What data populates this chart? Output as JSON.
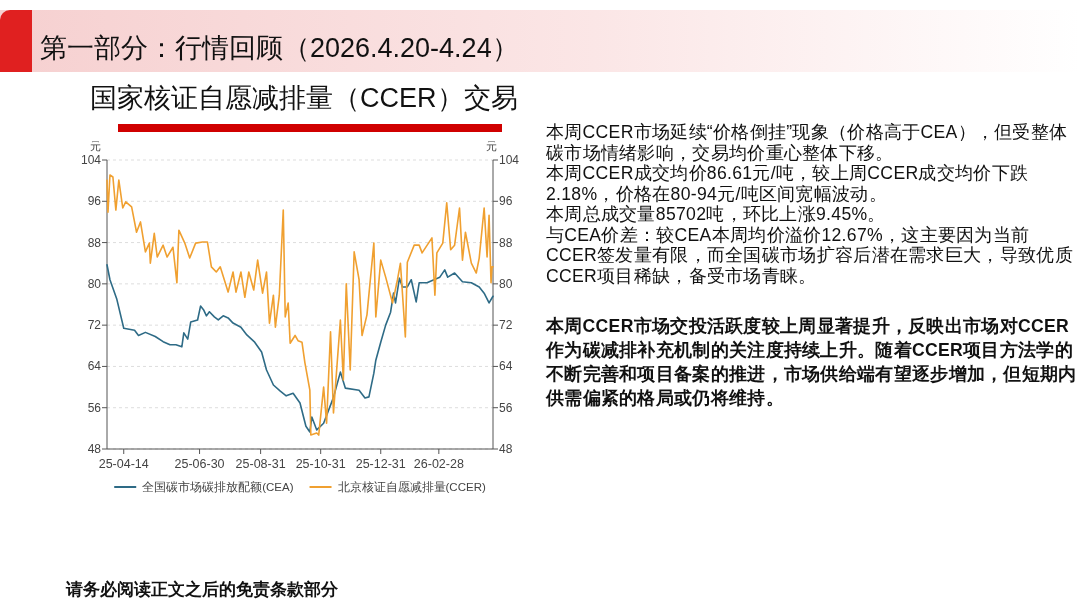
{
  "chart_data": {
    "type": "line",
    "title": "第一部分：行情回顾（2026.4.20-4.24）",
    "subtitle": "国家核证自愿减排量（CCER）交易",
    "ylabel": "元",
    "y2label": "元",
    "xlim": [
      "2025-03-28",
      "2026-04-24"
    ],
    "xticks": [
      {
        "value": "2025-04-14",
        "label": "25-04-14"
      },
      {
        "value": "2025-06-30",
        "label": "25-06-30"
      },
      {
        "value": "2025-08-31",
        "label": "25-08-31"
      },
      {
        "value": "2025-10-31",
        "label": "25-10-31"
      },
      {
        "value": "2025-12-31",
        "label": "25-12-31"
      },
      {
        "value": "2026-02-28",
        "label": "26-02-28"
      }
    ],
    "ylim": [
      48,
      104
    ],
    "yticks": [
      48,
      56,
      64,
      72,
      80,
      88,
      96,
      104
    ],
    "y2lim": [
      48,
      104
    ],
    "y2ticks": [
      48,
      56,
      64,
      72,
      80,
      88,
      96,
      104
    ],
    "grid": "y",
    "legend": "bottom",
    "series": [
      {
        "name": "全国碳市场碳排放配额(CEA)",
        "color": "#2e6b86",
        "x": [
          "2025-03-28",
          "2025-03-31",
          "2025-04-07",
          "2025-04-14",
          "2025-04-25",
          "2025-04-29",
          "2025-05-06",
          "2025-05-16",
          "2025-05-24",
          "2025-05-31",
          "2025-06-06",
          "2025-06-12",
          "2025-06-14",
          "2025-06-18",
          "2025-06-21",
          "2025-06-28",
          "2025-07-01",
          "2025-07-04",
          "2025-07-07",
          "2025-07-10",
          "2025-07-15",
          "2025-07-19",
          "2025-07-24",
          "2025-07-29",
          "2025-08-03",
          "2025-08-11",
          "2025-08-17",
          "2025-08-25",
          "2025-09-01",
          "2025-09-06",
          "2025-09-13",
          "2025-09-20",
          "2025-09-26",
          "2025-10-03",
          "2025-10-10",
          "2025-10-16",
          "2025-10-20",
          "2025-10-22",
          "2025-10-27",
          "2025-11-03",
          "2025-11-13",
          "2025-11-20",
          "2025-11-25",
          "2025-12-09",
          "2025-12-15",
          "2025-12-19",
          "2025-12-24",
          "2025-12-26",
          "2025-12-31",
          "2026-01-05",
          "2026-01-10",
          "2026-01-13",
          "2026-01-15",
          "2026-01-19",
          "2026-01-22",
          "2026-01-27",
          "2026-01-31",
          "2026-02-05",
          "2026-02-08",
          "2026-02-16",
          "2026-02-23",
          "2026-03-01",
          "2026-03-06",
          "2026-03-09",
          "2026-03-16",
          "2026-03-24",
          "2026-04-02",
          "2026-04-10",
          "2026-04-15",
          "2026-04-20",
          "2026-04-24"
        ],
        "values": [
          83.7,
          80.8,
          77,
          71.4,
          71,
          70,
          70.6,
          69.8,
          68.8,
          68.2,
          68.2,
          67.8,
          70.5,
          69.3,
          72.6,
          73,
          75.7,
          75,
          73.8,
          74.6,
          73.6,
          73,
          73.8,
          73.4,
          72.4,
          71.6,
          70.1,
          68.7,
          66.8,
          63.3,
          60.4,
          59.2,
          58.3,
          58.8,
          56.9,
          52.4,
          51.3,
          54.2,
          51.7,
          53,
          58,
          62.9,
          59.8,
          59.4,
          57.9,
          58.1,
          62.7,
          65.2,
          68.7,
          72,
          74.5,
          78.2,
          76.3,
          81.1,
          79.4,
          79.4,
          80.8,
          76.5,
          80.2,
          80.2,
          80.8,
          81.3,
          82.7,
          81.3,
          82.1,
          80.4,
          80.2,
          79.4,
          78.2,
          76.3,
          77.6
        ]
      },
      {
        "name": "北京核证自愿减排量(CCER)",
        "color": "#f0a030",
        "x": [
          "2025-03-28",
          "2025-03-29",
          "2025-03-31",
          "2025-04-03",
          "2025-04-06",
          "2025-04-09",
          "2025-04-13",
          "2025-04-16",
          "2025-04-22",
          "2025-04-27",
          "2025-05-01",
          "2025-05-06",
          "2025-05-10",
          "2025-05-11",
          "2025-05-15",
          "2025-05-18",
          "2025-05-24",
          "2025-05-28",
          "2025-06-03",
          "2025-06-07",
          "2025-06-09",
          "2025-06-15",
          "2025-06-20",
          "2025-06-26",
          "2025-07-03",
          "2025-07-08",
          "2025-07-12",
          "2025-07-17",
          "2025-07-21",
          "2025-07-29",
          "2025-08-03",
          "2025-08-06",
          "2025-08-11",
          "2025-08-15",
          "2025-08-19",
          "2025-08-24",
          "2025-08-28",
          "2025-09-02",
          "2025-09-06",
          "2025-09-09",
          "2025-09-13",
          "2025-09-15",
          "2025-09-19",
          "2025-09-23",
          "2025-09-25",
          "2025-09-28",
          "2025-09-30",
          "2025-10-05",
          "2025-10-08",
          "2025-10-12",
          "2025-10-15",
          "2025-10-20",
          "2025-10-21",
          "2025-10-27",
          "2025-10-29",
          "2025-11-03",
          "2025-11-06",
          "2025-11-10",
          "2025-11-13",
          "2025-11-20",
          "2025-11-23",
          "2025-11-26",
          "2025-11-30",
          "2025-12-04",
          "2025-12-09",
          "2025-12-12",
          "2025-12-17",
          "2025-12-24",
          "2025-12-26",
          "2025-12-31",
          "2026-01-05",
          "2026-01-12",
          "2026-01-17",
          "2026-01-20",
          "2026-01-25",
          "2026-01-27",
          "2026-02-03",
          "2026-02-08",
          "2026-02-11",
          "2026-02-21",
          "2026-02-24",
          "2026-02-26",
          "2026-03-04",
          "2026-03-08",
          "2026-03-12",
          "2026-03-16",
          "2026-03-21",
          "2026-03-24",
          "2026-03-27",
          "2026-04-02",
          "2026-04-07",
          "2026-04-10",
          "2026-04-15",
          "2026-04-18",
          "2026-04-20",
          "2026-04-22",
          "2026-04-23",
          "2026-04-24"
        ],
        "values": [
          100.1,
          93.9,
          101.1,
          100.7,
          94.3,
          100.1,
          94.7,
          95.9,
          94.9,
          90,
          92,
          86.2,
          87.9,
          84,
          89.8,
          85.2,
          87.5,
          85.2,
          87.1,
          80.2,
          90.4,
          87.9,
          85,
          87.9,
          88.1,
          88.1,
          83.3,
          82.3,
          83.3,
          78.4,
          82.3,
          78.4,
          82.3,
          77.4,
          82.3,
          78.8,
          84.6,
          78.2,
          82.3,
          72.4,
          77.8,
          71.6,
          77.8,
          94.3,
          73.6,
          76.3,
          68.5,
          70,
          69,
          68.7,
          64.7,
          59.4,
          50.7,
          51.1,
          50.7,
          60,
          53,
          70.7,
          55,
          73,
          61.4,
          80,
          63.3,
          86.2,
          80.8,
          70,
          74,
          87.9,
          73.6,
          84.6,
          81.3,
          76.3,
          80.8,
          84,
          69.7,
          84.2,
          87.5,
          87.5,
          86,
          88.9,
          77.8,
          86,
          87.9,
          95.7,
          86.6,
          87.5,
          94.7,
          84.6,
          90,
          84,
          82.1,
          85,
          94.7,
          85.2,
          93.3,
          80.2,
          83.3,
          83.3
        ]
      }
    ],
    "annotations": [
      "本周CCER市场延续“价格倒挂”现象（价格高于CEA），但受整体碳市场情绪影响，交易均价重心整体下移。",
      "本周CCER成交均价86.61元/吨，较上周CCER成交均价下跌2.18%，价格在80-94元/吨区间宽幅波动。",
      "本周总成交量85702吨，环比上涨9.45%。",
      "与CEA价差：较CEA本周均价溢价12.67%，这主要因为当前CCER签发量有限，而全国碳市场扩容后潜在需求巨大，导致优质CCER项目稀缺，备受市场青睐。",
      "本周CCER市场交投活跃度较上周显著提升，反映出市场对CCER作为碳减排补充机制的关注度持续上升。随着CCER项目方法学的不断完善和项目备案的推进，市场供给端有望逐步增加，但短期内供需偏紧的格局或仍将维持。",
      "请务必阅读正文之后的免责条款部分"
    ]
  }
}
